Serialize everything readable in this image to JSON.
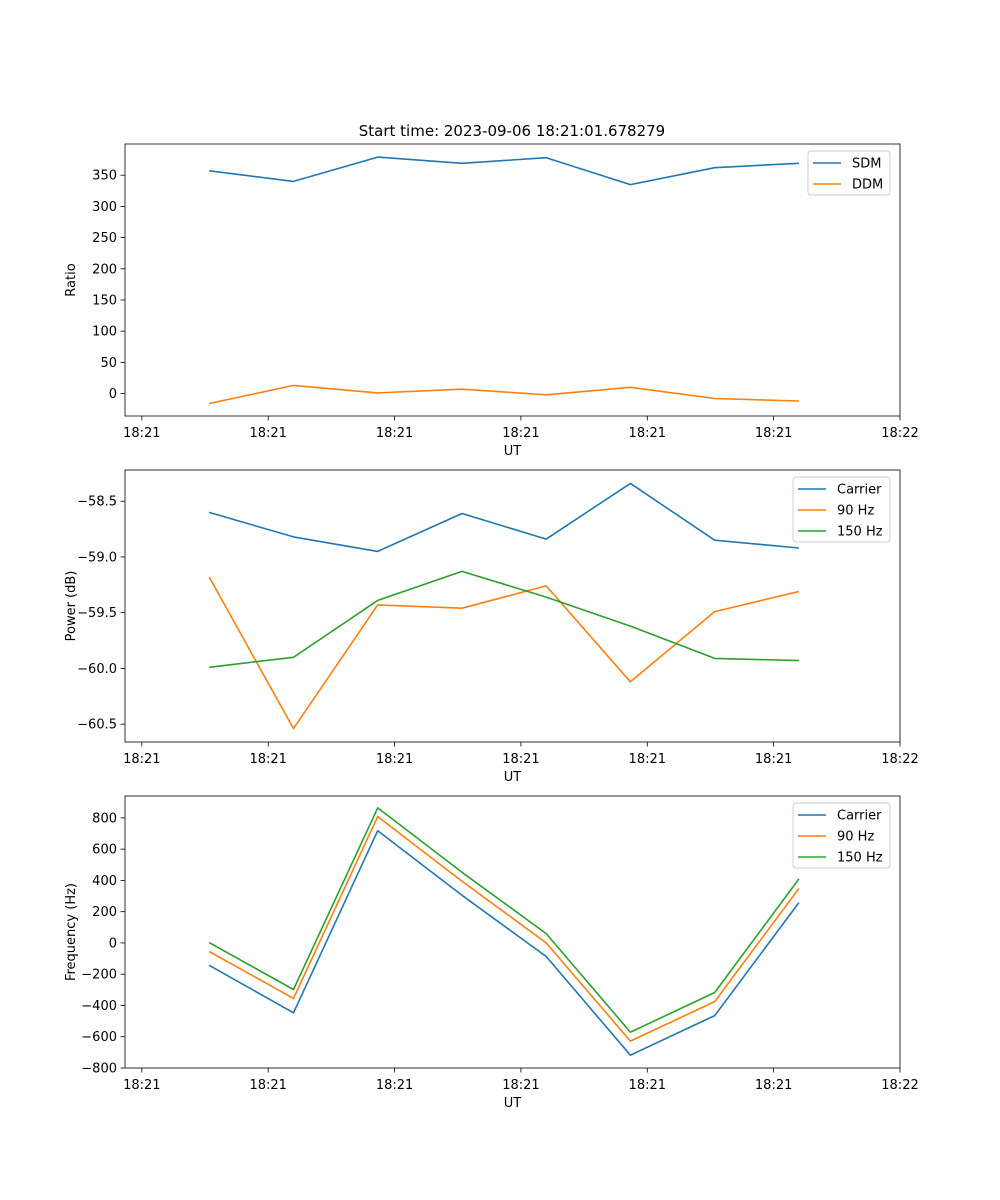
{
  "chart_data": [
    {
      "type": "line",
      "title": "Start time: 2023-09-06 18:21:01.678279",
      "xlabel": "UT",
      "ylabel": "Ratio",
      "x": [
        1,
        2,
        3,
        4,
        5,
        6,
        7,
        8
      ],
      "xlim": [
        0,
        9.2
      ],
      "xticks": [
        0.2,
        1.7,
        3.2,
        4.7,
        6.2,
        7.7,
        9.2
      ],
      "xtick_labels": [
        "18:21",
        "18:21",
        "18:21",
        "18:21",
        "18:21",
        "18:21",
        "18:22"
      ],
      "ylim": [
        -36,
        400
      ],
      "yticks": [
        0,
        50,
        100,
        150,
        200,
        250,
        300,
        350
      ],
      "legend_position": "top-right",
      "series": [
        {
          "name": "SDM",
          "color": "#1f77b4",
          "values": [
            357,
            340,
            379,
            369,
            378,
            335,
            362,
            369
          ]
        },
        {
          "name": "DDM",
          "color": "#ff7f0e",
          "values": [
            -16,
            13,
            1,
            7,
            -2,
            10,
            -8,
            -12
          ]
        }
      ]
    },
    {
      "type": "line",
      "title": "",
      "xlabel": "UT",
      "ylabel": "Power (dB)",
      "x": [
        1,
        2,
        3,
        4,
        5,
        6,
        7,
        8
      ],
      "xlim": [
        0,
        9.2
      ],
      "xticks": [
        0.2,
        1.7,
        3.2,
        4.7,
        6.2,
        7.7,
        9.2
      ],
      "xtick_labels": [
        "18:21",
        "18:21",
        "18:21",
        "18:21",
        "18:21",
        "18:21",
        "18:22"
      ],
      "ylim": [
        -60.66,
        -58.22
      ],
      "yticks": [
        -60.5,
        -60.0,
        -59.5,
        -59.0,
        -58.5
      ],
      "ytick_labels": [
        "−60.5",
        "−60.0",
        "−59.5",
        "−59.0",
        "−58.5"
      ],
      "legend_position": "top-right",
      "series": [
        {
          "name": "Carrier",
          "color": "#1f77b4",
          "values": [
            -58.6,
            -58.82,
            -58.95,
            -58.61,
            -58.84,
            -58.34,
            -58.85,
            -58.92
          ]
        },
        {
          "name": "90 Hz",
          "color": "#ff7f0e",
          "values": [
            -59.18,
            -60.54,
            -59.43,
            -59.46,
            -59.26,
            -60.12,
            -59.49,
            -59.31
          ]
        },
        {
          "name": "150 Hz",
          "color": "#2ca02c",
          "values": [
            -59.99,
            -59.9,
            -59.39,
            -59.13,
            -59.36,
            -59.62,
            -59.91,
            -59.93
          ]
        }
      ]
    },
    {
      "type": "line",
      "title": "",
      "xlabel": "UT",
      "ylabel": "Frequency (Hz)",
      "x": [
        1,
        2,
        3,
        4,
        5,
        6,
        7,
        8
      ],
      "xlim": [
        0,
        9.2
      ],
      "xticks": [
        0.2,
        1.7,
        3.2,
        4.7,
        6.2,
        7.7,
        9.2
      ],
      "xtick_labels": [
        "18:21",
        "18:21",
        "18:21",
        "18:21",
        "18:21",
        "18:21",
        "18:22"
      ],
      "ylim": [
        -800,
        940
      ],
      "yticks": [
        -800,
        -600,
        -400,
        -200,
        0,
        200,
        400,
        600,
        800
      ],
      "ytick_labels": [
        "−800",
        "−600",
        "−400",
        "−200",
        "0",
        "200",
        "400",
        "600",
        "800"
      ],
      "legend_position": "top-right",
      "series": [
        {
          "name": "Carrier",
          "color": "#1f77b4",
          "values": [
            -143,
            -447,
            718,
            305,
            -87,
            -718,
            -465,
            258
          ]
        },
        {
          "name": "90 Hz",
          "color": "#ff7f0e",
          "values": [
            -55,
            -355,
            808,
            395,
            0,
            -628,
            -375,
            348
          ]
        },
        {
          "name": "150 Hz",
          "color": "#2ca02c",
          "values": [
            2,
            -298,
            864,
            452,
            60,
            -571,
            -317,
            410
          ]
        }
      ]
    }
  ]
}
